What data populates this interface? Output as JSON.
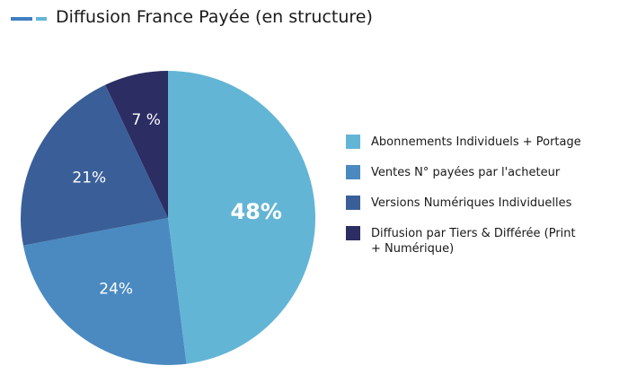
{
  "chart_data": {
    "type": "pie",
    "title": "Diffusion France Payée (en structure)",
    "categories": [
      "Abonnements Individuels + Portage",
      "Ventes N° payées par l'acheteur",
      "Versions Numériques Individuelles",
      "Diffusion par Tiers & Différée (Print + Numérique)"
    ],
    "values": [
      48,
      24,
      21,
      7
    ],
    "value_labels": [
      "48%",
      "24%",
      "21%",
      "7 %"
    ],
    "colors": [
      "#63b5d6",
      "#4a8ac0",
      "#3a5f98",
      "#2b2d63"
    ]
  }
}
